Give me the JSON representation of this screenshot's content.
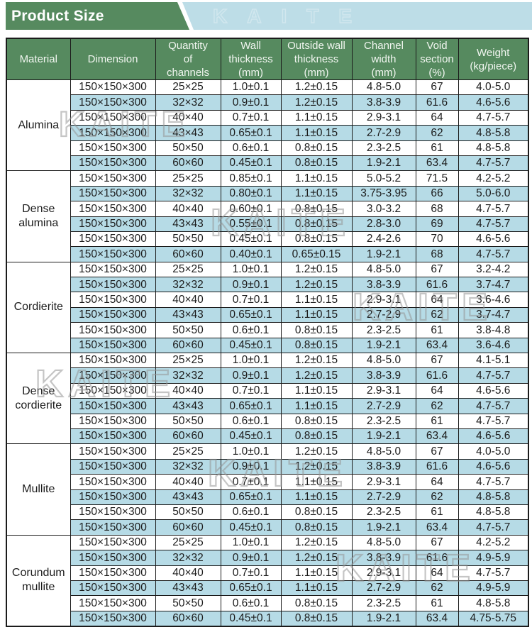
{
  "title": "Product Size",
  "watermark": "KAITE",
  "colors": {
    "green": "#568a5f",
    "banner_blue": "#bddde7",
    "row_blue": "#b6dbe6"
  },
  "table": {
    "columns": [
      "Material",
      "Dimension",
      "Quantity\nof\nchannels",
      "Wall\nthickness\n(mm)",
      "Outside wall\nthickness\n(mm)",
      "Channel\nwidth\n(mm)",
      "Void\nsection\n(%)",
      "Weight\n(kg/piece)"
    ],
    "groups": [
      {
        "material": "Alumina",
        "rows": [
          [
            "150×150×300",
            "25×25",
            "1.0±0.1",
            "1.2±0.15",
            "4.8-5.0",
            "67",
            "4.0-5.0"
          ],
          [
            "150×150×300",
            "32×32",
            "0.9±0.1",
            "1.2±0.15",
            "3.8-3.9",
            "61.6",
            "4.6-5.6"
          ],
          [
            "150×150×300",
            "40×40",
            "0.7±0.1",
            "1.1±0.15",
            "2.9-3.1",
            "64",
            "4.7-5.7"
          ],
          [
            "150×150×300",
            "43×43",
            "0.65±0.1",
            "1.1±0.15",
            "2.7-2.9",
            "62",
            "4.8-5.8"
          ],
          [
            "150×150×300",
            "50×50",
            "0.6±0.1",
            "0.8±0.15",
            "2.3-2.5",
            "61",
            "4.8-5.8"
          ],
          [
            "150×150×300",
            "60×60",
            "0.45±0.1",
            "0.8±0.15",
            "1.9-2.1",
            "63.4",
            "4.7-5.7"
          ]
        ]
      },
      {
        "material": "Dense alumina",
        "rows": [
          [
            "150×150×300",
            "25×25",
            "0.85±0.1",
            "1.1±0.15",
            "5.0-5.2",
            "71.5",
            "4.2-5.2"
          ],
          [
            "150×150×300",
            "32×32",
            "0.80±0.1",
            "1.1±0.15",
            "3.75-3.95",
            "66",
            "5.0-6.0"
          ],
          [
            "150×150×300",
            "40×40",
            "0.60±0.1",
            "0.8±0.15",
            "3.0-3.2",
            "68",
            "4.7-5.7"
          ],
          [
            "150×150×300",
            "43×43",
            "0.55±0.1",
            "0.8±0.15",
            "2.8-3.0",
            "69",
            "4.7-5.7"
          ],
          [
            "150×150×300",
            "50×50",
            "0.45±0.1",
            "0.8±0.15",
            "2.4-2.6",
            "70",
            "4.6-5.6"
          ],
          [
            "150×150×300",
            "60×60",
            "0.40±0.1",
            "0.65±0.15",
            "1.9-2.1",
            "68",
            "4.7-5.7"
          ]
        ]
      },
      {
        "material": "Cordierite",
        "rows": [
          [
            "150×150×300",
            "25×25",
            "1.0±0.1",
            "1.2±0.15",
            "4.8-5.0",
            "67",
            "3.2-4.2"
          ],
          [
            "150×150×300",
            "32×32",
            "0.9±0.1",
            "1.2±0.15",
            "3.8-3.9",
            "61.6",
            "3.7-4.7"
          ],
          [
            "150×150×300",
            "40×40",
            "0.7±0.1",
            "1.1±0.15",
            "2.9-3.1",
            "64",
            "3.6-4.6"
          ],
          [
            "150×150×300",
            "43×43",
            "0.65±0.1",
            "1.1±0.15",
            "2.7-2.9",
            "62",
            "3.7-4.7"
          ],
          [
            "150×150×300",
            "50×50",
            "0.6±0.1",
            "0.8±0.15",
            "2.3-2.5",
            "61",
            "3.8-4.8"
          ],
          [
            "150×150×300",
            "60×60",
            "0.45±0.1",
            "0.8±0.15",
            "1.9-2.1",
            "63.4",
            "3.6-4.6"
          ]
        ]
      },
      {
        "material": "Dense cordierite",
        "rows": [
          [
            "150×150×300",
            "25×25",
            "1.0±0.1",
            "1.2±0.15",
            "4.8-5.0",
            "67",
            "4.1-5.1"
          ],
          [
            "150×150×300",
            "32×32",
            "0.9±0.1",
            "1.2±0.15",
            "3.8-3.9",
            "61.6",
            "4.7-5.7"
          ],
          [
            "150×150×300",
            "40×40",
            "0.7±0.1",
            "1.1±0.15",
            "2.9-3.1",
            "64",
            "4.6-5.6"
          ],
          [
            "150×150×300",
            "43×43",
            "0.65±0.1",
            "1.1±0.15",
            "2.7-2.9",
            "62",
            "4.7-5.7"
          ],
          [
            "150×150×300",
            "50×50",
            "0.6±0.1",
            "0.8±0.15",
            "2.3-2.5",
            "61",
            "4.7-5.7"
          ],
          [
            "150×150×300",
            "60×60",
            "0.45±0.1",
            "0.8±0.15",
            "1.9-2.1",
            "63.4",
            "4.6-5.6"
          ]
        ]
      },
      {
        "material": "Mullite",
        "rows": [
          [
            "150×150×300",
            "25×25",
            "1.0±0.1",
            "1.2±0.15",
            "4.8-5.0",
            "67",
            "4.0-5.0"
          ],
          [
            "150×150×300",
            "32×32",
            "0.9±0.1",
            "1.2±0.15",
            "3.8-3.9",
            "61.6",
            "4.6-5.6"
          ],
          [
            "150×150×300",
            "40×40",
            "0.7±0.1",
            "1.1±0.15",
            "2.9-3.1",
            "64",
            "4.7-5.7"
          ],
          [
            "150×150×300",
            "43×43",
            "0.65±0.1",
            "1.1±0.15",
            "2.7-2.9",
            "62",
            "4.8-5.8"
          ],
          [
            "150×150×300",
            "50×50",
            "0.6±0.1",
            "0.8±0.15",
            "2.3-2.5",
            "61",
            "4.8-5.8"
          ],
          [
            "150×150×300",
            "60×60",
            "0.45±0.1",
            "0.8±0.15",
            "1.9-2.1",
            "63.4",
            "4.7-5.7"
          ]
        ]
      },
      {
        "material": "Corundum mullite",
        "rows": [
          [
            "150×150×300",
            "25×25",
            "1.0±0.1",
            "1.2±0.15",
            "4.8-5.0",
            "67",
            "4.2-5.2"
          ],
          [
            "150×150×300",
            "32×32",
            "0.9±0.1",
            "1.2±0.15",
            "3.8-3.9",
            "61.6",
            "4.9-5.9"
          ],
          [
            "150×150×300",
            "40×40",
            "0.7±0.1",
            "1.1±0.15",
            "2.9-3.1",
            "64",
            "4.7-5.7"
          ],
          [
            "150×150×300",
            "43×43",
            "0.65±0.1",
            "1.1±0.15",
            "2.7-2.9",
            "62",
            "4.9-5.9"
          ],
          [
            "150×150×300",
            "50×50",
            "0.6±0.1",
            "0.8±0.15",
            "2.3-2.5",
            "61",
            "4.8-5.8"
          ],
          [
            "150×150×300",
            "60×60",
            "0.45±0.1",
            "0.8±0.15",
            "1.9-2.1",
            "63.4",
            "4.75-5.75"
          ]
        ]
      }
    ]
  }
}
